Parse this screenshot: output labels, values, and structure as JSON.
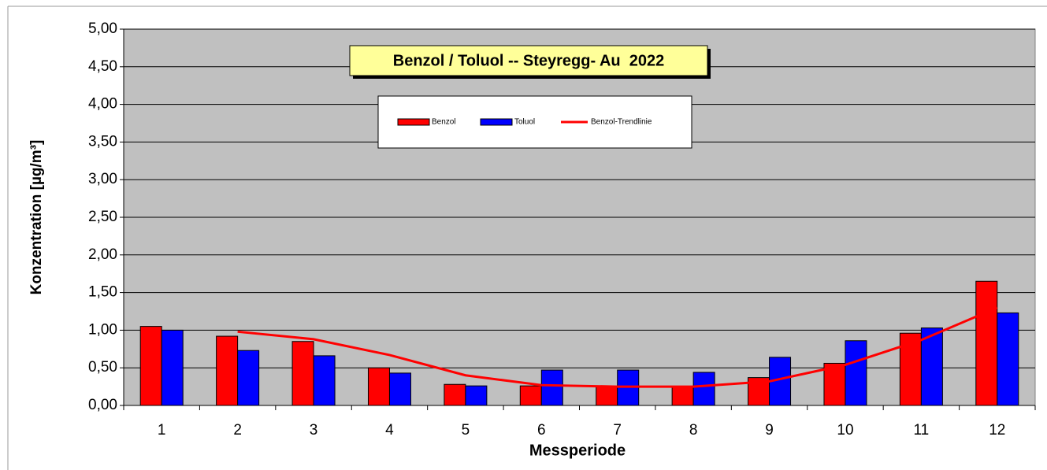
{
  "chart_data": {
    "type": "bar",
    "title": "Benzol / Toluol -- Steyregg- Au  2022",
    "x_label": "Messperiode",
    "y_label": "Konzentration [µg/m³]",
    "categories": [
      "1",
      "2",
      "3",
      "4",
      "5",
      "6",
      "7",
      "8",
      "9",
      "10",
      "11",
      "12"
    ],
    "series": [
      {
        "name": "Benzol",
        "color": "#ff0000",
        "values": [
          1.05,
          0.92,
          0.85,
          0.5,
          0.28,
          0.26,
          0.25,
          0.25,
          0.37,
          0.56,
          0.96,
          1.65
        ]
      },
      {
        "name": "Toluol",
        "color": "#0000ff",
        "values": [
          1.0,
          0.73,
          0.66,
          0.43,
          0.26,
          0.47,
          0.47,
          0.44,
          0.64,
          0.86,
          1.03,
          1.23
        ]
      },
      {
        "name": "Benzol-Trendlinie",
        "color": "#ff0000",
        "type": "line",
        "values": [
          null,
          0.98,
          0.88,
          0.67,
          0.4,
          0.27,
          0.25,
          0.25,
          0.32,
          0.54,
          0.87,
          1.3
        ]
      }
    ],
    "ylim": [
      0,
      5
    ],
    "yticks": [
      {
        "value": 0,
        "label": "0,00"
      },
      {
        "value": 0.5,
        "label": "0,50"
      },
      {
        "value": 1,
        "label": "1,00"
      },
      {
        "value": 1.5,
        "label": "1,50"
      },
      {
        "value": 2,
        "label": "2,00"
      },
      {
        "value": 2.5,
        "label": "2,50"
      },
      {
        "value": 3,
        "label": "3,00"
      },
      {
        "value": 3.5,
        "label": "3,50"
      },
      {
        "value": 4,
        "label": "4,00"
      },
      {
        "value": 4.5,
        "label": "4,50"
      },
      {
        "value": 5,
        "label": "5,00"
      }
    ],
    "grid": true,
    "plot_background": "#c0c0c0",
    "title_background": "#ffff99"
  }
}
